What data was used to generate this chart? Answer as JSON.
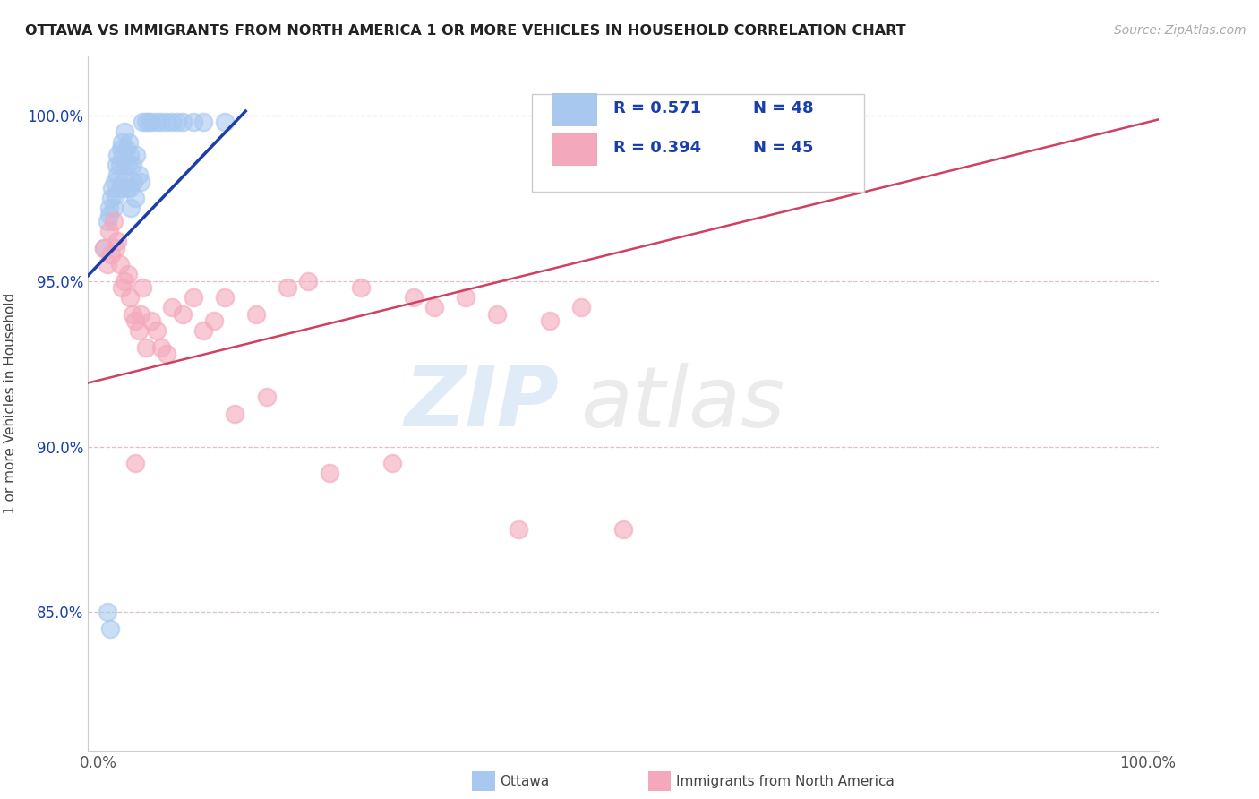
{
  "title": "OTTAWA VS IMMIGRANTS FROM NORTH AMERICA 1 OR MORE VEHICLES IN HOUSEHOLD CORRELATION CHART",
  "source": "Source: ZipAtlas.com",
  "ylabel": "1 or more Vehicles in Household",
  "xlabel": "",
  "xlim": [
    -0.01,
    1.01
  ],
  "ylim": [
    0.808,
    1.018
  ],
  "yticks": [
    0.85,
    0.9,
    0.95,
    1.0
  ],
  "ytick_labels": [
    "85.0%",
    "90.0%",
    "95.0%",
    "100.0%"
  ],
  "xticks": [
    0.0,
    1.0
  ],
  "xtick_labels": [
    "0.0%",
    "100.0%"
  ],
  "legend_r1": "R = 0.571",
  "legend_n1": "N = 48",
  "legend_r2": "R = 0.394",
  "legend_n2": "N = 45",
  "blue_color": "#a8c8f0",
  "pink_color": "#f4a8bc",
  "blue_line_color": "#1a3faa",
  "pink_line_color": "#d04060",
  "watermark_zip": "ZIP",
  "watermark_atlas": "atlas",
  "blue_x": [
    0.005,
    0.008,
    0.01,
    0.01,
    0.012,
    0.013,
    0.014,
    0.015,
    0.016,
    0.017,
    0.018,
    0.018,
    0.02,
    0.02,
    0.021,
    0.022,
    0.023,
    0.024,
    0.025,
    0.025,
    0.026,
    0.027,
    0.028,
    0.029,
    0.03,
    0.03,
    0.031,
    0.032,
    0.033,
    0.035,
    0.036,
    0.038,
    0.04,
    0.042,
    0.045,
    0.048,
    0.05,
    0.055,
    0.06,
    0.065,
    0.07,
    0.075,
    0.08,
    0.09,
    0.1,
    0.12,
    0.008,
    0.011
  ],
  "blue_y": [
    0.96,
    0.968,
    0.97,
    0.972,
    0.975,
    0.978,
    0.972,
    0.98,
    0.976,
    0.985,
    0.982,
    0.988,
    0.978,
    0.985,
    0.99,
    0.992,
    0.988,
    0.98,
    0.995,
    0.985,
    0.99,
    0.978,
    0.985,
    0.992,
    0.978,
    0.988,
    0.972,
    0.985,
    0.98,
    0.975,
    0.988,
    0.982,
    0.98,
    0.998,
    0.998,
    0.998,
    0.998,
    0.998,
    0.998,
    0.998,
    0.998,
    0.998,
    0.998,
    0.998,
    0.998,
    0.998,
    0.85,
    0.845
  ],
  "pink_x": [
    0.005,
    0.008,
    0.01,
    0.012,
    0.014,
    0.016,
    0.018,
    0.02,
    0.022,
    0.025,
    0.028,
    0.03,
    0.032,
    0.035,
    0.038,
    0.04,
    0.042,
    0.045,
    0.05,
    0.055,
    0.06,
    0.065,
    0.07,
    0.08,
    0.09,
    0.1,
    0.11,
    0.12,
    0.15,
    0.16,
    0.18,
    0.2,
    0.22,
    0.25,
    0.28,
    0.3,
    0.32,
    0.35,
    0.38,
    0.4,
    0.43,
    0.46,
    0.5,
    0.035,
    0.13
  ],
  "pink_y": [
    0.96,
    0.955,
    0.965,
    0.958,
    0.968,
    0.96,
    0.962,
    0.955,
    0.948,
    0.95,
    0.952,
    0.945,
    0.94,
    0.938,
    0.935,
    0.94,
    0.948,
    0.93,
    0.938,
    0.935,
    0.93,
    0.928,
    0.942,
    0.94,
    0.945,
    0.935,
    0.938,
    0.945,
    0.94,
    0.915,
    0.948,
    0.95,
    0.892,
    0.948,
    0.895,
    0.945,
    0.942,
    0.945,
    0.94,
    0.875,
    0.938,
    0.942,
    0.875,
    0.895,
    0.91
  ]
}
